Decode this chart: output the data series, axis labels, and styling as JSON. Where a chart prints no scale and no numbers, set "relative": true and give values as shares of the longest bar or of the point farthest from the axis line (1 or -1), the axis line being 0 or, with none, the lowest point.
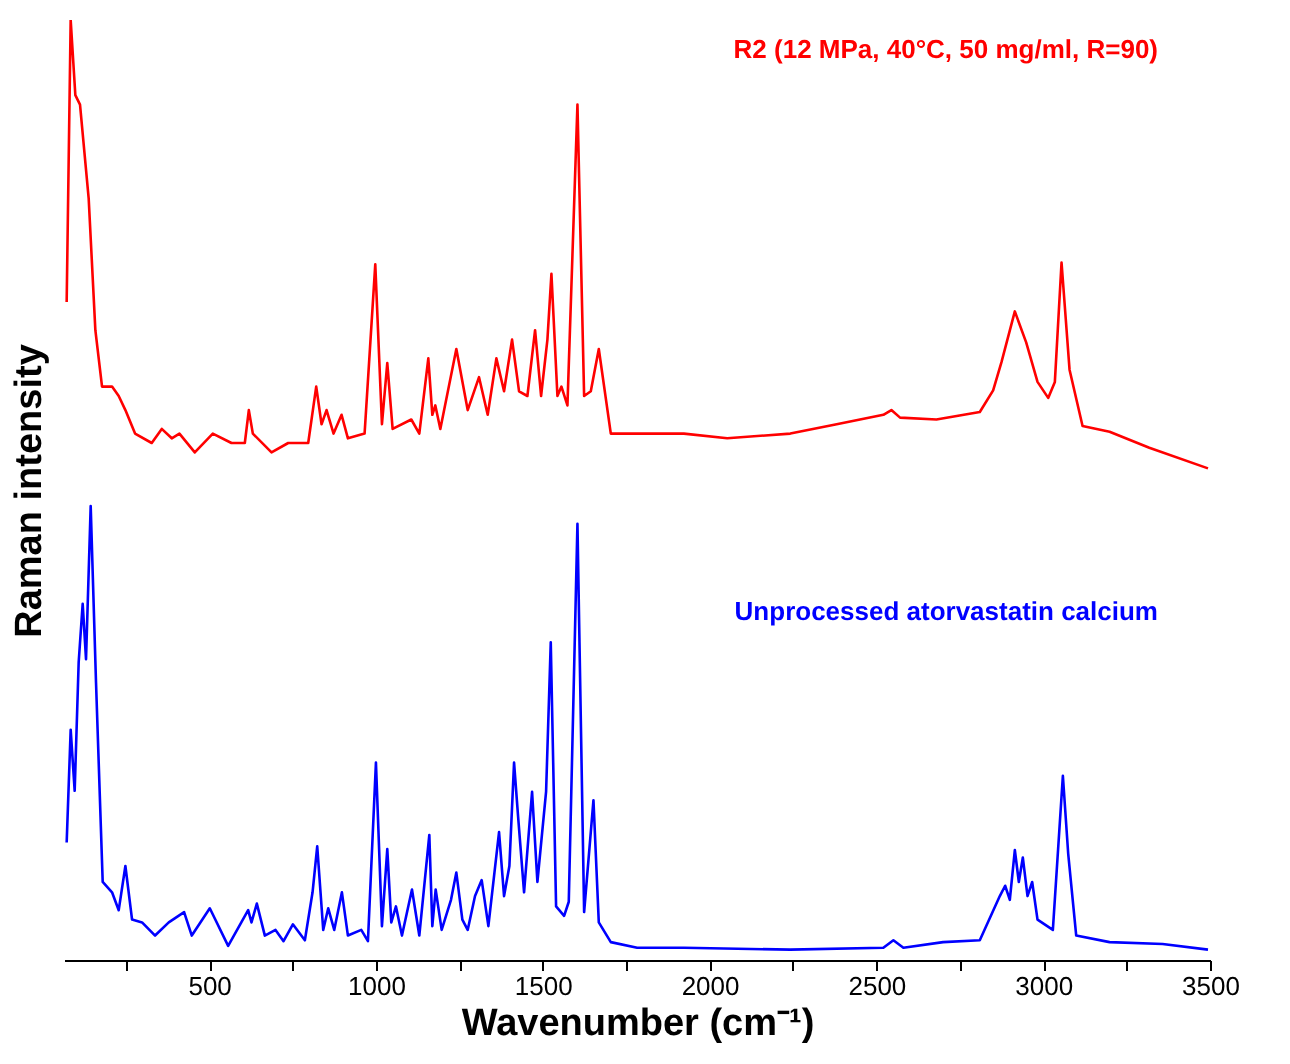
{
  "chart_data": {
    "type": "line",
    "relative": true,
    "xlabel": "Wavenumber (cm⁻¹)",
    "ylabel": "Raman intensity",
    "grid": false,
    "xlim": [
      65,
      3500
    ],
    "xticks": [
      {
        "value": 250,
        "label": null
      },
      500,
      {
        "value": 750,
        "label": null
      },
      1000,
      {
        "value": 1250,
        "label": null
      },
      1500,
      {
        "value": 1750,
        "label": null
      },
      2000,
      {
        "value": 2250,
        "label": null
      },
      2500,
      {
        "value": 2750,
        "label": null
      },
      3000,
      {
        "value": 3250,
        "label": null
      },
      3500
    ],
    "series": [
      {
        "name": "R2 (12 MPa, 40°C, 50 mg/ml, R=90)",
        "color": "#ff0000",
        "x": [
          73,
          85,
          99,
          113,
          139,
          159,
          179,
          209,
          229,
          249,
          278,
          328,
          358,
          388,
          411,
          457,
          511,
          567,
          607,
          619,
          631,
          687,
          737,
          797,
          821,
          837,
          852,
          873,
          897,
          916,
          966,
          998,
          1018,
          1034,
          1050,
          1106,
          1130,
          1157,
          1169,
          1178,
          1193,
          1241,
          1275,
          1309,
          1335,
          1361,
          1384,
          1408,
          1429,
          1454,
          1477,
          1495,
          1514,
          1526,
          1544,
          1556,
          1574,
          1604,
          1624,
          1644,
          1668,
          1704,
          1783,
          1923,
          2053,
          2242,
          2381,
          2521,
          2545,
          2571,
          2680,
          2810,
          2850,
          2875,
          2915,
          2949,
          2983,
          3015,
          3035,
          3055,
          3079,
          3118,
          3199,
          3318,
          3494
        ],
        "values": [
          0.7,
          1.0,
          0.92,
          0.91,
          0.81,
          0.67,
          0.61,
          0.61,
          0.6,
          0.585,
          0.56,
          0.55,
          0.565,
          0.555,
          0.56,
          0.54,
          0.56,
          0.55,
          0.55,
          0.585,
          0.56,
          0.54,
          0.55,
          0.55,
          0.61,
          0.57,
          0.585,
          0.56,
          0.58,
          0.555,
          0.56,
          0.74,
          0.57,
          0.635,
          0.565,
          0.575,
          0.56,
          0.64,
          0.58,
          0.59,
          0.565,
          0.65,
          0.585,
          0.62,
          0.58,
          0.64,
          0.605,
          0.66,
          0.605,
          0.6,
          0.67,
          0.6,
          0.66,
          0.73,
          0.6,
          0.61,
          0.59,
          0.91,
          0.6,
          0.605,
          0.65,
          0.56,
          0.56,
          0.56,
          0.555,
          0.56,
          0.57,
          0.58,
          0.585,
          0.577,
          0.575,
          0.583,
          0.606,
          0.636,
          0.69,
          0.657,
          0.615,
          0.598,
          0.615,
          0.742,
          0.628,
          0.568,
          0.562,
          0.545,
          0.523
        ]
      },
      {
        "name": "Unprocessed atorvastatin calcium",
        "color": "#0000ff",
        "x": [
          73,
          85,
          97,
          109,
          121,
          131,
          145,
          161,
          181,
          209,
          229,
          249,
          269,
          299,
          338,
          379,
          425,
          448,
          502,
          557,
          617,
          627,
          643,
          667,
          699,
          723,
          751,
          787,
          810,
          824,
          842,
          857,
          875,
          898,
          916,
          956,
          976,
          1000,
          1018,
          1034,
          1046,
          1060,
          1078,
          1108,
          1130,
          1160,
          1169,
          1179,
          1197,
          1225,
          1241,
          1259,
          1275,
          1297,
          1317,
          1337,
          1369,
          1384,
          1400,
          1414,
          1426,
          1444,
          1468,
          1484,
          1510,
          1524,
          1540,
          1564,
          1578,
          1604,
          1624,
          1652,
          1668,
          1704,
          1783,
          1923,
          2242,
          2521,
          2551,
          2581,
          2700,
          2810,
          2870,
          2886,
          2900,
          2915,
          2927,
          2939,
          2953,
          2967,
          2983,
          3029,
          3059,
          3075,
          3099,
          3199,
          3358,
          3494
        ],
        "values": [
          0.125,
          0.245,
          0.18,
          0.317,
          0.379,
          0.32,
          0.483,
          0.295,
          0.083,
          0.072,
          0.053,
          0.1,
          0.043,
          0.04,
          0.026,
          0.04,
          0.051,
          0.026,
          0.055,
          0.015,
          0.053,
          0.04,
          0.06,
          0.026,
          0.032,
          0.02,
          0.038,
          0.021,
          0.072,
          0.121,
          0.032,
          0.055,
          0.032,
          0.072,
          0.026,
          0.032,
          0.02,
          0.21,
          0.036,
          0.118,
          0.04,
          0.057,
          0.026,
          0.075,
          0.026,
          0.133,
          0.036,
          0.075,
          0.032,
          0.064,
          0.093,
          0.043,
          0.032,
          0.068,
          0.085,
          0.036,
          0.136,
          0.068,
          0.1,
          0.21,
          0.153,
          0.072,
          0.179,
          0.083,
          0.179,
          0.338,
          0.057,
          0.047,
          0.062,
          0.464,
          0.051,
          0.17,
          0.04,
          0.019,
          0.013,
          0.013,
          0.011,
          0.013,
          0.021,
          0.013,
          0.019,
          0.021,
          0.068,
          0.079,
          0.064,
          0.117,
          0.083,
          0.109,
          0.068,
          0.083,
          0.043,
          0.032,
          0.196,
          0.113,
          0.026,
          0.019,
          0.017,
          0.011
        ]
      }
    ]
  }
}
